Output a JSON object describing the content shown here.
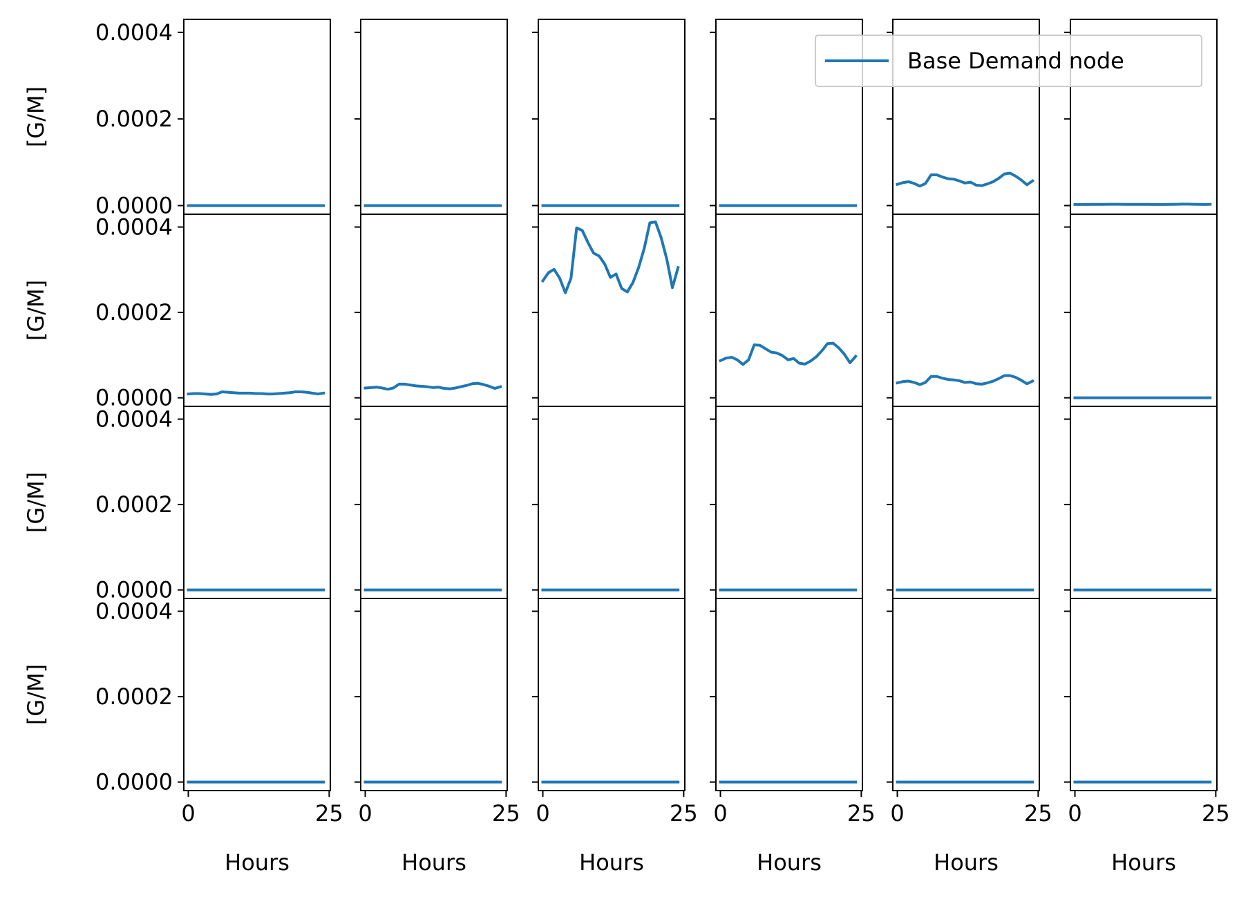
{
  "chart_data": {
    "type": "line",
    "layout": {
      "rows": 4,
      "cols": 6
    },
    "xlabel": "Hours",
    "ylabel": "[G/M]",
    "xlim": [
      -0.8,
      25.2
    ],
    "ylim": [
      -2e-05,
      0.00043
    ],
    "xticks": [
      0,
      25
    ],
    "xtick_labels": [
      "0",
      "25"
    ],
    "yticks": [
      0.0,
      0.0002,
      0.0004
    ],
    "ytick_labels": [
      "0.0000",
      "0.0002",
      "0.0004"
    ],
    "legend": {
      "label": "Base Demand node",
      "placement": "upper-right",
      "panel": [
        0,
        3
      ]
    },
    "line_color": "#1f77b4",
    "x": [
      0,
      1,
      2,
      3,
      4,
      5,
      6,
      7,
      8,
      9,
      10,
      11,
      12,
      13,
      14,
      15,
      16,
      17,
      18,
      19,
      20,
      21,
      22,
      23,
      24
    ],
    "panels": [
      [
        [
          0,
          0,
          0,
          0,
          0,
          0,
          0,
          0,
          0,
          0,
          0,
          0,
          0,
          0,
          0,
          0,
          0,
          0,
          0,
          0,
          0,
          0,
          0,
          0,
          0
        ],
        [
          0,
          0,
          0,
          0,
          0,
          0,
          0,
          0,
          0,
          0,
          0,
          0,
          0,
          0,
          0,
          0,
          0,
          0,
          0,
          0,
          0,
          0,
          0,
          0,
          0
        ],
        [
          0,
          0,
          0,
          0,
          0,
          0,
          0,
          0,
          0,
          0,
          0,
          0,
          0,
          0,
          0,
          0,
          0,
          0,
          0,
          0,
          0,
          0,
          0,
          0,
          0
        ],
        [
          0,
          0,
          0,
          0,
          0,
          0,
          0,
          0,
          0,
          0,
          0,
          0,
          0,
          0,
          0,
          0,
          0,
          0,
          0,
          0,
          0,
          0,
          0,
          0,
          0
        ],
        [
          4.9e-05,
          5.3e-05,
          5.5e-05,
          5.1e-05,
          4.5e-05,
          5.1e-05,
          7.1e-05,
          7.1e-05,
          6.6e-05,
          6.2e-05,
          6.1e-05,
          5.7e-05,
          5.2e-05,
          5.4e-05,
          4.7e-05,
          4.6e-05,
          5e-05,
          5.5e-05,
          6.3e-05,
          7.3e-05,
          7.5e-05,
          6.8e-05,
          5.9e-05,
          4.8e-05,
          5.7e-05
        ],
        [
          2.5e-06,
          2.5e-06,
          2.5e-06,
          2.8e-06,
          2.8e-06,
          2.8e-06,
          3e-06,
          3e-06,
          3e-06,
          2.8e-06,
          2.8e-06,
          2.8e-06,
          2.7e-06,
          2.7e-06,
          2.6e-06,
          2.5e-06,
          2.5e-06,
          2.7e-06,
          3e-06,
          3.3e-06,
          3.3e-06,
          3e-06,
          2.7e-06,
          2.5e-06,
          2.8e-06
        ]
      ],
      [
        [
          9e-06,
          1e-05,
          1e-05,
          9e-06,
          8e-06,
          9e-06,
          1.4e-05,
          1.3e-05,
          1.2e-05,
          1.1e-05,
          1.1e-05,
          1.1e-05,
          1e-05,
          1e-05,
          9e-06,
          9e-06,
          1e-05,
          1.1e-05,
          1.2e-05,
          1.4e-05,
          1.4e-05,
          1.3e-05,
          1.1e-05,
          9e-06,
          1.1e-05
        ],
        [
          2.3e-05,
          2.4e-05,
          2.5e-05,
          2.3e-05,
          2e-05,
          2.3e-05,
          3.2e-05,
          3.2e-05,
          3e-05,
          2.8e-05,
          2.7e-05,
          2.6e-05,
          2.4e-05,
          2.5e-05,
          2.2e-05,
          2.1e-05,
          2.3e-05,
          2.6e-05,
          2.9e-05,
          3.3e-05,
          3.4e-05,
          3.1e-05,
          2.7e-05,
          2.2e-05,
          2.6e-05
        ],
        [
          0.000274,
          0.000293,
          0.000301,
          0.00028,
          0.000246,
          0.00028,
          0.000398,
          0.000392,
          0.000364,
          0.000339,
          0.000332,
          0.000313,
          0.000282,
          0.00029,
          0.000256,
          0.000248,
          0.00027,
          0.000305,
          0.00035,
          0.00041,
          0.000412,
          0.000375,
          0.000325,
          0.000258,
          0.000305
        ],
        [
          8.7e-05,
          9.3e-05,
          9.5e-05,
          8.9e-05,
          7.8e-05,
          8.9e-05,
          0.000124,
          0.000123,
          0.000115,
          0.000107,
          0.000105,
          9.9e-05,
          8.9e-05,
          9.2e-05,
          8.1e-05,
          7.9e-05,
          8.6e-05,
          9.6e-05,
          0.00011,
          0.000127,
          0.000128,
          0.000117,
          0.000102,
          8.2e-05,
          9.7e-05
        ],
        [
          3.5e-05,
          3.8e-05,
          3.9e-05,
          3.6e-05,
          3.1e-05,
          3.6e-05,
          5e-05,
          5e-05,
          4.6e-05,
          4.3e-05,
          4.2e-05,
          4e-05,
          3.6e-05,
          3.7e-05,
          3.3e-05,
          3.2e-05,
          3.5e-05,
          3.9e-05,
          4.5e-05,
          5.2e-05,
          5.2e-05,
          4.8e-05,
          4.1e-05,
          3.3e-05,
          3.9e-05
        ],
        [
          0,
          0,
          0,
          0,
          0,
          0,
          0,
          0,
          0,
          0,
          0,
          0,
          0,
          0,
          0,
          0,
          0,
          0,
          0,
          0,
          0,
          0,
          0,
          0,
          0
        ]
      ],
      [
        [
          0,
          0,
          0,
          0,
          0,
          0,
          0,
          0,
          0,
          0,
          0,
          0,
          0,
          0,
          0,
          0,
          0,
          0,
          0,
          0,
          0,
          0,
          0,
          0,
          0
        ],
        [
          0,
          0,
          0,
          0,
          0,
          0,
          0,
          0,
          0,
          0,
          0,
          0,
          0,
          0,
          0,
          0,
          0,
          0,
          0,
          0,
          0,
          0,
          0,
          0,
          0
        ],
        [
          0,
          0,
          0,
          0,
          0,
          0,
          0,
          0,
          0,
          0,
          0,
          0,
          0,
          0,
          0,
          0,
          0,
          0,
          0,
          0,
          0,
          0,
          0,
          0,
          0
        ],
        [
          0,
          0,
          0,
          0,
          0,
          0,
          0,
          0,
          0,
          0,
          0,
          0,
          0,
          0,
          0,
          0,
          0,
          0,
          0,
          0,
          0,
          0,
          0,
          0,
          0
        ],
        [
          0,
          0,
          0,
          0,
          0,
          0,
          0,
          0,
          0,
          0,
          0,
          0,
          0,
          0,
          0,
          0,
          0,
          0,
          0,
          0,
          0,
          0,
          0,
          0,
          0
        ],
        [
          0,
          0,
          0,
          0,
          0,
          0,
          0,
          0,
          0,
          0,
          0,
          0,
          0,
          0,
          0,
          0,
          0,
          0,
          0,
          0,
          0,
          0,
          0,
          0,
          0
        ]
      ],
      [
        [
          0,
          0,
          0,
          0,
          0,
          0,
          0,
          0,
          0,
          0,
          0,
          0,
          0,
          0,
          0,
          0,
          0,
          0,
          0,
          0,
          0,
          0,
          0,
          0,
          0
        ],
        [
          0,
          0,
          0,
          0,
          0,
          0,
          0,
          0,
          0,
          0,
          0,
          0,
          0,
          0,
          0,
          0,
          0,
          0,
          0,
          0,
          0,
          0,
          0,
          0,
          0
        ],
        [
          0,
          0,
          0,
          0,
          0,
          0,
          0,
          0,
          0,
          0,
          0,
          0,
          0,
          0,
          0,
          0,
          0,
          0,
          0,
          0,
          0,
          0,
          0,
          0,
          0
        ],
        [
          0,
          0,
          0,
          0,
          0,
          0,
          0,
          0,
          0,
          0,
          0,
          0,
          0,
          0,
          0,
          0,
          0,
          0,
          0,
          0,
          0,
          0,
          0,
          0,
          0
        ],
        [
          0,
          0,
          0,
          0,
          0,
          0,
          0,
          0,
          0,
          0,
          0,
          0,
          0,
          0,
          0,
          0,
          0,
          0,
          0,
          0,
          0,
          0,
          0,
          0,
          0
        ],
        [
          0,
          0,
          0,
          0,
          0,
          0,
          0,
          0,
          0,
          0,
          0,
          0,
          0,
          0,
          0,
          0,
          0,
          0,
          0,
          0,
          0,
          0,
          0,
          0,
          0
        ]
      ]
    ]
  }
}
